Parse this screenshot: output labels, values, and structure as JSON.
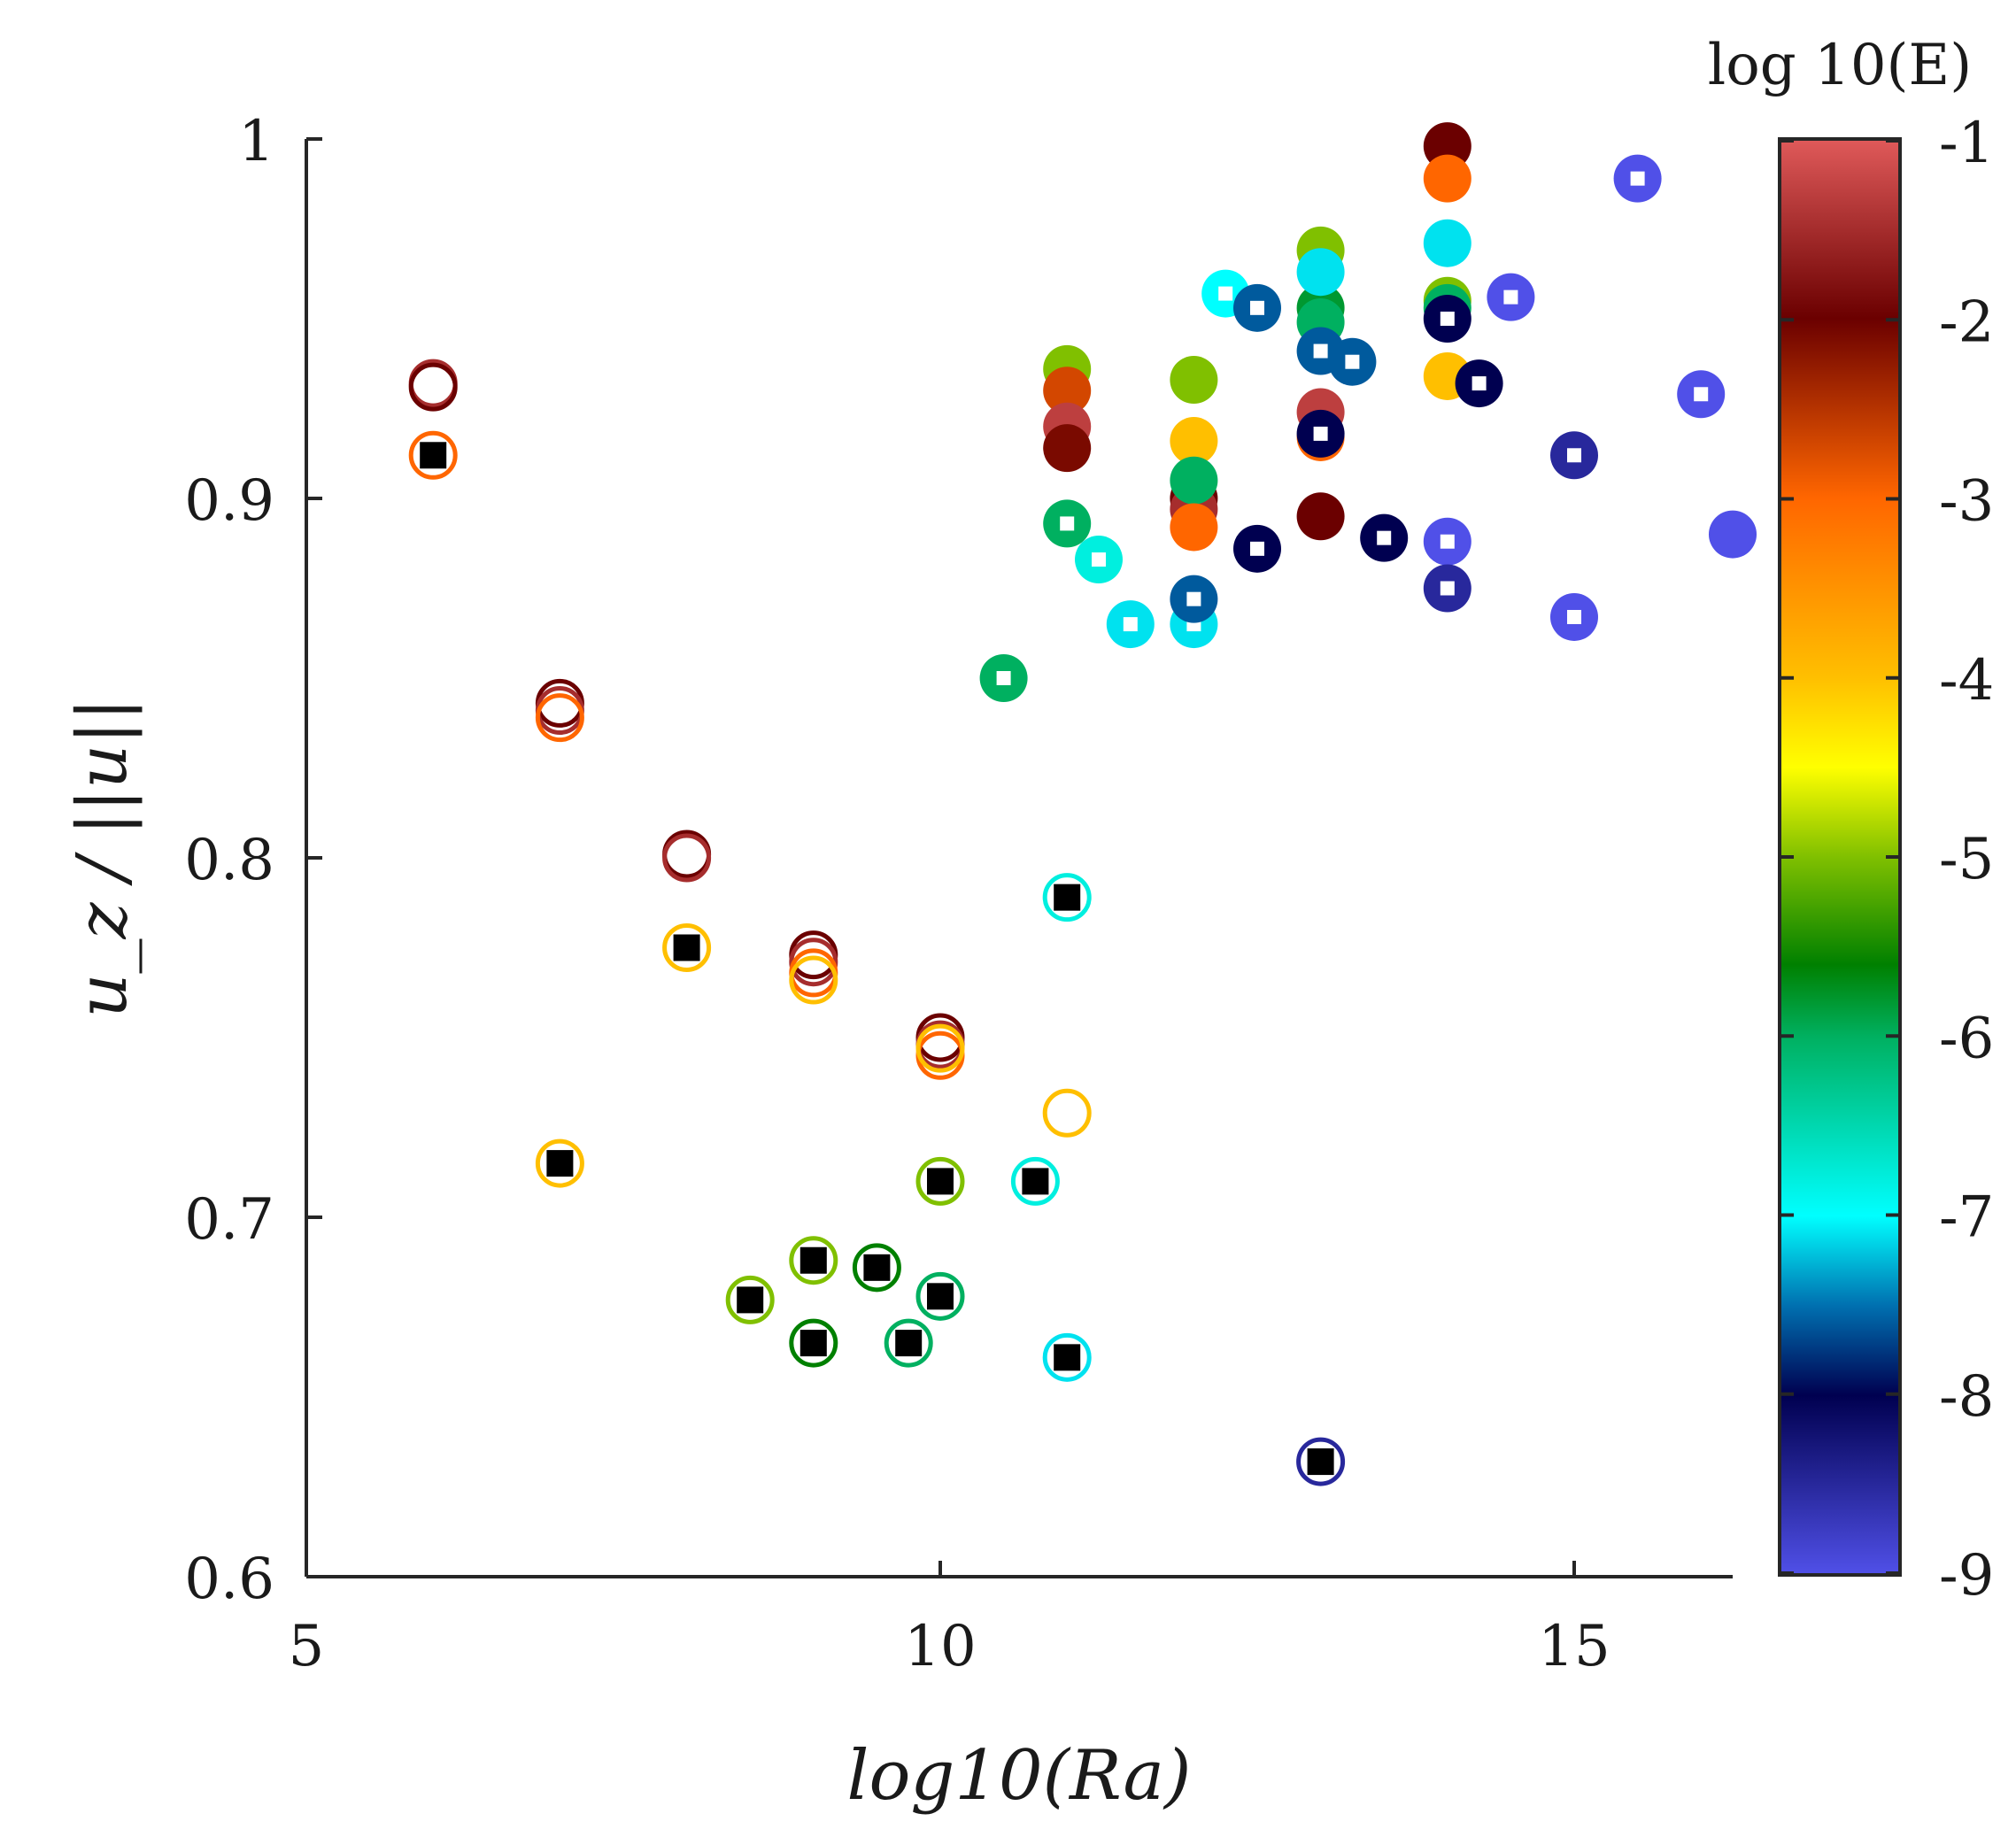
{
  "chart_data": {
    "type": "scatter",
    "xlabel": "log10(Ra)",
    "ylabel": "u_z / ||u||",
    "xlim": [
      5,
      16.25
    ],
    "ylim": [
      0.6,
      1.0
    ],
    "xticks": [
      5,
      10,
      15
    ],
    "yticks": [
      0.6,
      0.7,
      0.8,
      0.9,
      1.0
    ],
    "xtick_labels": [
      "5",
      "10",
      "15"
    ],
    "ytick_labels": [
      "0.6",
      "0.7",
      "0.8",
      "0.9",
      "1"
    ],
    "colorbar": {
      "title": "log 10(E)",
      "range": [
        -9,
        -1
      ],
      "ticks": [
        -1,
        -2,
        -3,
        -4,
        -5,
        -6,
        -7,
        -8,
        -9
      ],
      "tick_labels": [
        "-1",
        "-2",
        "-3",
        "-4",
        "-5",
        "-6",
        "-7",
        "-8",
        "-9"
      ],
      "colormap": [
        {
          "v": -1,
          "color": "#e05a5a"
        },
        {
          "v": -2,
          "color": "#6b0000"
        },
        {
          "v": -3,
          "color": "#ff6600"
        },
        {
          "v": -4,
          "color": "#ffbf00"
        },
        {
          "v": -4.5,
          "color": "#ffff00"
        },
        {
          "v": -5,
          "color": "#80c000"
        },
        {
          "v": -5.6,
          "color": "#008000"
        },
        {
          "v": -6,
          "color": "#00b060"
        },
        {
          "v": -7,
          "color": "#00ffff"
        },
        {
          "v": -7.5,
          "color": "#0070b0"
        },
        {
          "v": -8,
          "color": "#000050"
        },
        {
          "v": -9,
          "color": "#5050e8"
        }
      ]
    },
    "series": [
      {
        "name": "filled circles",
        "marker": "filled-circle",
        "points": [
          {
            "x": 11,
            "y": 0.936,
            "e": -5
          },
          {
            "x": 11,
            "y": 0.93,
            "e": -2.7
          },
          {
            "x": 11,
            "y": 0.92,
            "e": -1.3
          },
          {
            "x": 11,
            "y": 0.914,
            "e": -2.1
          },
          {
            "x": 12,
            "y": 0.933,
            "e": -5
          },
          {
            "x": 12,
            "y": 0.916,
            "e": -4
          },
          {
            "x": 12,
            "y": 0.9,
            "e": -2
          },
          {
            "x": 12,
            "y": 0.897,
            "e": -1.5
          },
          {
            "x": 12,
            "y": 0.905,
            "e": -6
          },
          {
            "x": 12,
            "y": 0.892,
            "e": -3
          },
          {
            "x": 13,
            "y": 0.969,
            "e": -5
          },
          {
            "x": 13,
            "y": 0.953,
            "e": -5.8
          },
          {
            "x": 13,
            "y": 0.949,
            "e": -6
          },
          {
            "x": 13,
            "y": 0.963,
            "e": -7.1
          },
          {
            "x": 13,
            "y": 0.924,
            "e": -1.3
          },
          {
            "x": 13,
            "y": 0.917,
            "e": -3
          },
          {
            "x": 13,
            "y": 0.895,
            "e": -2
          },
          {
            "x": 14,
            "y": 0.998,
            "e": -2
          },
          {
            "x": 14,
            "y": 0.989,
            "e": -3
          },
          {
            "x": 14,
            "y": 0.971,
            "e": -7.1
          },
          {
            "x": 14,
            "y": 0.955,
            "e": -5
          },
          {
            "x": 14,
            "y": 0.953,
            "e": -6
          },
          {
            "x": 14,
            "y": 0.934,
            "e": -4
          },
          {
            "x": 16.25,
            "y": 0.89,
            "e": -9
          }
        ]
      },
      {
        "name": "filled circles with white squares",
        "marker": "circle-white-square",
        "points": [
          {
            "x": 10.5,
            "y": 0.85,
            "e": -6
          },
          {
            "x": 11,
            "y": 0.893,
            "e": -6
          },
          {
            "x": 11.25,
            "y": 0.883,
            "e": -6.8
          },
          {
            "x": 11.5,
            "y": 0.865,
            "e": -7.1
          },
          {
            "x": 12,
            "y": 0.865,
            "e": -7.1
          },
          {
            "x": 12,
            "y": 0.872,
            "e": -7.6
          },
          {
            "x": 12.25,
            "y": 0.957,
            "e": -7
          },
          {
            "x": 12.5,
            "y": 0.953,
            "e": -7.6
          },
          {
            "x": 12.5,
            "y": 0.886,
            "e": -8
          },
          {
            "x": 13,
            "y": 0.941,
            "e": -7.6
          },
          {
            "x": 13,
            "y": 0.918,
            "e": -8
          },
          {
            "x": 13.25,
            "y": 0.938,
            "e": -7.6
          },
          {
            "x": 13.5,
            "y": 0.889,
            "e": -8
          },
          {
            "x": 14,
            "y": 0.95,
            "e": -8
          },
          {
            "x": 14,
            "y": 0.888,
            "e": -9
          },
          {
            "x": 14,
            "y": 0.875,
            "e": -8.5
          },
          {
            "x": 14.25,
            "y": 0.932,
            "e": -8
          },
          {
            "x": 14.5,
            "y": 0.956,
            "e": -9
          },
          {
            "x": 15,
            "y": 0.912,
            "e": -8.5
          },
          {
            "x": 15,
            "y": 0.867,
            "e": -9
          },
          {
            "x": 15.5,
            "y": 0.989,
            "e": -9
          },
          {
            "x": 16,
            "y": 0.929,
            "e": -9
          }
        ]
      },
      {
        "name": "open circles",
        "marker": "open-circle",
        "points": [
          {
            "x": 6,
            "y": 0.932,
            "e": -1.5
          },
          {
            "x": 6,
            "y": 0.931,
            "e": -2
          },
          {
            "x": 7,
            "y": 0.843,
            "e": -2
          },
          {
            "x": 7,
            "y": 0.841,
            "e": -1.5
          },
          {
            "x": 7,
            "y": 0.839,
            "e": -3
          },
          {
            "x": 8,
            "y": 0.801,
            "e": -2
          },
          {
            "x": 8,
            "y": 0.8,
            "e": -1.5
          },
          {
            "x": 9,
            "y": 0.773,
            "e": -2
          },
          {
            "x": 9,
            "y": 0.771,
            "e": -1.5
          },
          {
            "x": 9,
            "y": 0.768,
            "e": -3
          },
          {
            "x": 9,
            "y": 0.766,
            "e": -4
          },
          {
            "x": 10,
            "y": 0.75,
            "e": -2
          },
          {
            "x": 10,
            "y": 0.748,
            "e": -1.5
          },
          {
            "x": 10,
            "y": 0.745,
            "e": -3
          },
          {
            "x": 10,
            "y": 0.747,
            "e": -4
          },
          {
            "x": 11,
            "y": 0.729,
            "e": -4
          }
        ]
      },
      {
        "name": "open circles with black squares",
        "marker": "circle-black-square",
        "points": [
          {
            "x": 6,
            "y": 0.912,
            "e": -3
          },
          {
            "x": 7,
            "y": 0.715,
            "e": -4
          },
          {
            "x": 8,
            "y": 0.775,
            "e": -4
          },
          {
            "x": 8.5,
            "y": 0.677,
            "e": -5
          },
          {
            "x": 9,
            "y": 0.688,
            "e": -5
          },
          {
            "x": 9,
            "y": 0.665,
            "e": -5.6
          },
          {
            "x": 9.5,
            "y": 0.686,
            "e": -5.6
          },
          {
            "x": 9.75,
            "y": 0.665,
            "e": -6
          },
          {
            "x": 10,
            "y": 0.71,
            "e": -5
          },
          {
            "x": 10,
            "y": 0.678,
            "e": -6
          },
          {
            "x": 10.75,
            "y": 0.71,
            "e": -6.8
          },
          {
            "x": 11,
            "y": 0.789,
            "e": -6.8
          },
          {
            "x": 11,
            "y": 0.661,
            "e": -7.1
          },
          {
            "x": 13,
            "y": 0.632,
            "e": -8.5
          }
        ]
      }
    ]
  }
}
